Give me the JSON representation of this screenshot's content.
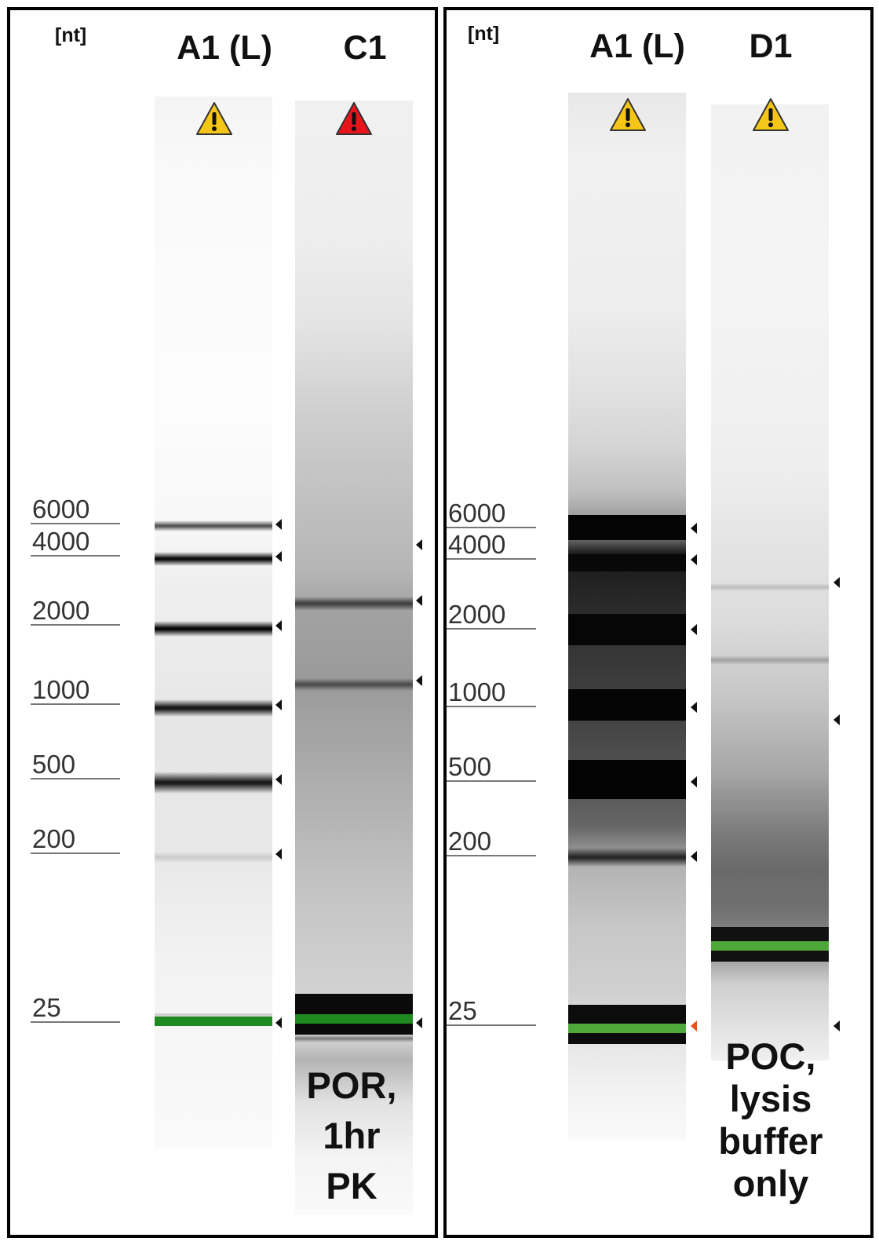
{
  "left_panel": {
    "unit": "[nt]",
    "ladder_title": "A1 (L)",
    "sample_title": "C1",
    "ladder_warning": "warning",
    "sample_warning": "error",
    "caption_lines": [
      "POR,",
      "1hr",
      "PK"
    ]
  },
  "right_panel": {
    "unit": "[nt]",
    "ladder_title": "A1 (L)",
    "sample_title": "D1",
    "ladder_warning": "warning",
    "sample_warning": "warning",
    "caption_lines": [
      "POC,",
      "lysis",
      "buffer",
      "only"
    ]
  },
  "size_markers": [
    "6000",
    "4000",
    "2000",
    "1000",
    "500",
    "200",
    "25"
  ],
  "colors": {
    "warning": "#f5c518",
    "error": "#e8141c",
    "lower_marker": "#1f8a1f",
    "lower_marker_light": "#4fa83a",
    "flagged_marker": "#e8501c"
  },
  "icons": {
    "warning": "warning-triangle-icon",
    "error": "error-triangle-icon"
  }
}
